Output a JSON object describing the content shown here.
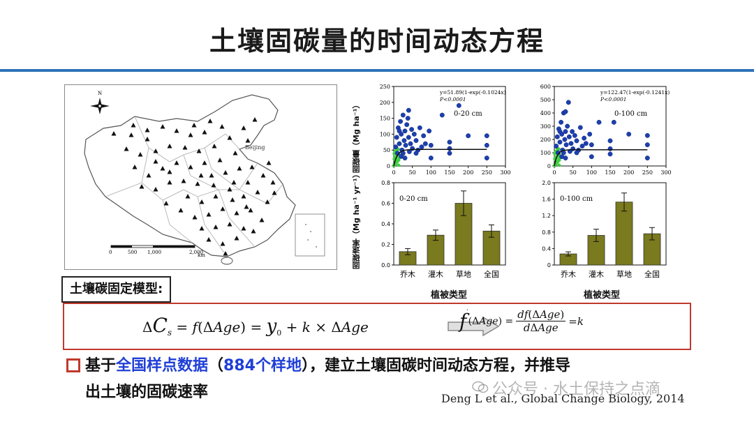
{
  "title": "土壤固碳量的时间动态方程",
  "map": {
    "north": "N",
    "city": "Beijing",
    "scale_ticks": [
      "0",
      "500",
      "1,000",
      "2,000"
    ],
    "scale_unit": "km",
    "site_color": "#111111"
  },
  "scatter_ylabel": "固碳量（Mg ha⁻¹）",
  "bar_ylabel": "固碳速率（Mg ha⁻¹ yr⁻¹）",
  "bar_xlabel": "植被类型",
  "model_label": "土壤碳固定模型:",
  "equations": {
    "left": "ΔC_s = f(ΔAge) = y_0 + k × ΔAge",
    "right": "f′(ΔAge) = df(ΔAge)/dΔAge = k"
  },
  "bullet": {
    "prefix": "基于",
    "highlight1": "全国样点数据",
    "paren_open": "（",
    "highlight2": "884个样地",
    "rest1": "），建立土壤固碳时间动态方程，并推导",
    "line2": "出土壤的固碳速率"
  },
  "citation": "Deng L et al., Global Change Biology, 2014",
  "watermark": "公众号 · 水土保持之点滴",
  "colors": {
    "title_rule": "#2e73b8",
    "eq_border": "#c0392b",
    "highlight": "#1f3fd6",
    "scatter_point": "#1e3fae",
    "scatter_small": "#3ecf3e",
    "bar_fill": "#7a7a1e"
  },
  "chart_data": [
    {
      "type": "scatter",
      "label": "0-20 cm",
      "equation": "y=51.89(1-exp(-0.1024x)",
      "p_value": "P<0.0001",
      "xlim": [
        0,
        300
      ],
      "ylim": [
        0,
        250
      ],
      "xticks": [
        0,
        50,
        100,
        150,
        200,
        250,
        300
      ],
      "yticks": [
        0,
        50,
        100,
        150,
        200,
        250
      ],
      "fit": {
        "a": 51.89,
        "b": 0.1024
      },
      "points": [
        [
          5,
          60
        ],
        [
          8,
          90
        ],
        [
          10,
          40
        ],
        [
          12,
          120
        ],
        [
          15,
          70
        ],
        [
          18,
          140
        ],
        [
          20,
          100
        ],
        [
          22,
          50
        ],
        [
          25,
          160
        ],
        [
          28,
          80
        ],
        [
          30,
          110
        ],
        [
          32,
          65
        ],
        [
          35,
          130
        ],
        [
          38,
          150
        ],
        [
          40,
          90
        ],
        [
          42,
          45
        ],
        [
          45,
          70
        ],
        [
          48,
          115
        ],
        [
          50,
          55
        ],
        [
          55,
          100
        ],
        [
          60,
          80
        ],
        [
          65,
          50
        ],
        [
          70,
          120
        ],
        [
          75,
          60
        ],
        [
          80,
          95
        ],
        [
          85,
          70
        ],
        [
          95,
          110
        ],
        [
          100,
          65
        ],
        [
          100,
          25
        ],
        [
          130,
          160
        ],
        [
          150,
          55
        ],
        [
          150,
          75
        ],
        [
          150,
          40
        ],
        [
          175,
          190
        ],
        [
          200,
          95
        ],
        [
          250,
          95
        ],
        [
          250,
          65
        ],
        [
          250,
          25
        ],
        [
          40,
          175
        ],
        [
          20,
          30
        ],
        [
          30,
          25
        ],
        [
          60,
          40
        ],
        [
          15,
          110
        ],
        [
          25,
          40
        ]
      ]
    },
    {
      "type": "scatter",
      "label": "0-100 cm",
      "equation": "y=122.47(1-exp(-0.1241x)",
      "p_value": "P<0.0001",
      "xlim": [
        0,
        300
      ],
      "ylim": [
        0,
        600
      ],
      "xticks": [
        0,
        50,
        100,
        150,
        200,
        250,
        300
      ],
      "yticks": [
        0,
        100,
        200,
        300,
        400,
        500,
        600
      ],
      "fit": {
        "a": 122.47,
        "b": 0.1241
      },
      "points": [
        [
          5,
          150
        ],
        [
          8,
          220
        ],
        [
          10,
          100
        ],
        [
          12,
          280
        ],
        [
          15,
          180
        ],
        [
          18,
          330
        ],
        [
          20,
          240
        ],
        [
          22,
          120
        ],
        [
          25,
          400
        ],
        [
          28,
          200
        ],
        [
          30,
          260
        ],
        [
          32,
          160
        ],
        [
          35,
          300
        ],
        [
          38,
          480
        ],
        [
          40,
          220
        ],
        [
          42,
          110
        ],
        [
          45,
          170
        ],
        [
          48,
          260
        ],
        [
          50,
          130
        ],
        [
          55,
          230
        ],
        [
          60,
          190
        ],
        [
          65,
          120
        ],
        [
          70,
          290
        ],
        [
          75,
          150
        ],
        [
          80,
          210
        ],
        [
          85,
          170
        ],
        [
          95,
          240
        ],
        [
          100,
          160
        ],
        [
          100,
          70
        ],
        [
          120,
          330
        ],
        [
          150,
          130
        ],
        [
          150,
          190
        ],
        [
          150,
          90
        ],
        [
          160,
          330
        ],
        [
          200,
          240
        ],
        [
          250,
          230
        ],
        [
          250,
          160
        ],
        [
          250,
          60
        ],
        [
          30,
          410
        ],
        [
          20,
          70
        ],
        [
          30,
          60
        ],
        [
          60,
          100
        ],
        [
          15,
          260
        ],
        [
          25,
          100
        ]
      ]
    },
    {
      "type": "bar",
      "label": "0-20 cm",
      "categories": [
        "乔木",
        "灌木",
        "草地",
        "全国"
      ],
      "values": [
        0.13,
        0.29,
        0.6,
        0.33
      ],
      "errors": [
        0.03,
        0.05,
        0.12,
        0.06
      ],
      "ylim": [
        0,
        0.8
      ],
      "yticks": [
        "0.0",
        "0.2",
        "0.4",
        "0.6",
        "0.8"
      ]
    },
    {
      "type": "bar",
      "label": "0-100 cm",
      "categories": [
        "乔木",
        "灌木",
        "草地",
        "全国"
      ],
      "values": [
        0.27,
        0.72,
        1.53,
        0.76
      ],
      "errors": [
        0.05,
        0.15,
        0.22,
        0.15
      ],
      "ylim": [
        0,
        2.0
      ],
      "yticks": [
        "0",
        "0.4",
        "0.8",
        "1.2",
        "1.6",
        "2.0"
      ]
    }
  ]
}
